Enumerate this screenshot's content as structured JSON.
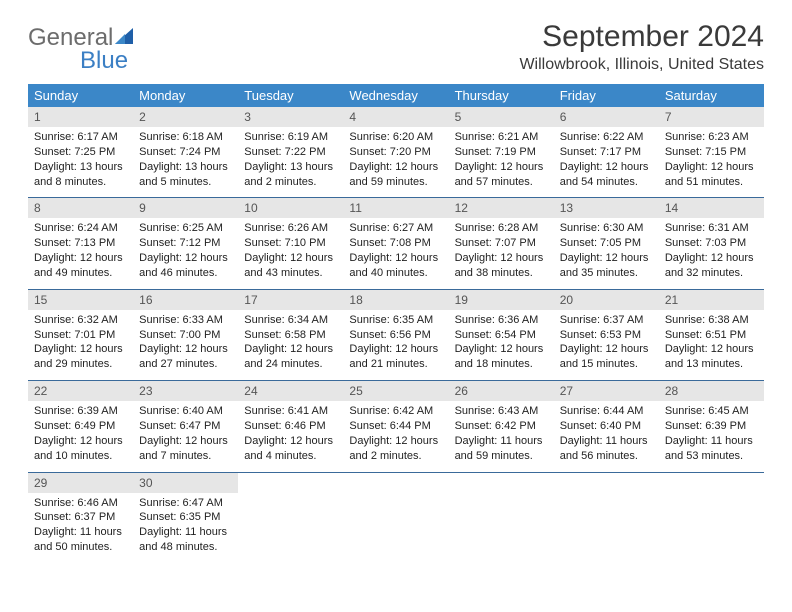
{
  "logo": {
    "general": "General",
    "blue": "Blue"
  },
  "title": "September 2024",
  "location": "Willowbrook, Illinois, United States",
  "colors": {
    "header_bg": "#3b87c8",
    "header_text": "#ffffff",
    "daynum_bg": "#e6e6e6",
    "daynum_text": "#555555",
    "rule": "#3a6a9a",
    "logo_gray": "#6c6c6c",
    "logo_blue": "#3b7fc4"
  },
  "weekdays": [
    "Sunday",
    "Monday",
    "Tuesday",
    "Wednesday",
    "Thursday",
    "Friday",
    "Saturday"
  ],
  "weeks": [
    [
      {
        "n": "1",
        "sr": "Sunrise: 6:17 AM",
        "ss": "Sunset: 7:25 PM",
        "dl": "Daylight: 13 hours and 8 minutes."
      },
      {
        "n": "2",
        "sr": "Sunrise: 6:18 AM",
        "ss": "Sunset: 7:24 PM",
        "dl": "Daylight: 13 hours and 5 minutes."
      },
      {
        "n": "3",
        "sr": "Sunrise: 6:19 AM",
        "ss": "Sunset: 7:22 PM",
        "dl": "Daylight: 13 hours and 2 minutes."
      },
      {
        "n": "4",
        "sr": "Sunrise: 6:20 AM",
        "ss": "Sunset: 7:20 PM",
        "dl": "Daylight: 12 hours and 59 minutes."
      },
      {
        "n": "5",
        "sr": "Sunrise: 6:21 AM",
        "ss": "Sunset: 7:19 PM",
        "dl": "Daylight: 12 hours and 57 minutes."
      },
      {
        "n": "6",
        "sr": "Sunrise: 6:22 AM",
        "ss": "Sunset: 7:17 PM",
        "dl": "Daylight: 12 hours and 54 minutes."
      },
      {
        "n": "7",
        "sr": "Sunrise: 6:23 AM",
        "ss": "Sunset: 7:15 PM",
        "dl": "Daylight: 12 hours and 51 minutes."
      }
    ],
    [
      {
        "n": "8",
        "sr": "Sunrise: 6:24 AM",
        "ss": "Sunset: 7:13 PM",
        "dl": "Daylight: 12 hours and 49 minutes."
      },
      {
        "n": "9",
        "sr": "Sunrise: 6:25 AM",
        "ss": "Sunset: 7:12 PM",
        "dl": "Daylight: 12 hours and 46 minutes."
      },
      {
        "n": "10",
        "sr": "Sunrise: 6:26 AM",
        "ss": "Sunset: 7:10 PM",
        "dl": "Daylight: 12 hours and 43 minutes."
      },
      {
        "n": "11",
        "sr": "Sunrise: 6:27 AM",
        "ss": "Sunset: 7:08 PM",
        "dl": "Daylight: 12 hours and 40 minutes."
      },
      {
        "n": "12",
        "sr": "Sunrise: 6:28 AM",
        "ss": "Sunset: 7:07 PM",
        "dl": "Daylight: 12 hours and 38 minutes."
      },
      {
        "n": "13",
        "sr": "Sunrise: 6:30 AM",
        "ss": "Sunset: 7:05 PM",
        "dl": "Daylight: 12 hours and 35 minutes."
      },
      {
        "n": "14",
        "sr": "Sunrise: 6:31 AM",
        "ss": "Sunset: 7:03 PM",
        "dl": "Daylight: 12 hours and 32 minutes."
      }
    ],
    [
      {
        "n": "15",
        "sr": "Sunrise: 6:32 AM",
        "ss": "Sunset: 7:01 PM",
        "dl": "Daylight: 12 hours and 29 minutes."
      },
      {
        "n": "16",
        "sr": "Sunrise: 6:33 AM",
        "ss": "Sunset: 7:00 PM",
        "dl": "Daylight: 12 hours and 27 minutes."
      },
      {
        "n": "17",
        "sr": "Sunrise: 6:34 AM",
        "ss": "Sunset: 6:58 PM",
        "dl": "Daylight: 12 hours and 24 minutes."
      },
      {
        "n": "18",
        "sr": "Sunrise: 6:35 AM",
        "ss": "Sunset: 6:56 PM",
        "dl": "Daylight: 12 hours and 21 minutes."
      },
      {
        "n": "19",
        "sr": "Sunrise: 6:36 AM",
        "ss": "Sunset: 6:54 PM",
        "dl": "Daylight: 12 hours and 18 minutes."
      },
      {
        "n": "20",
        "sr": "Sunrise: 6:37 AM",
        "ss": "Sunset: 6:53 PM",
        "dl": "Daylight: 12 hours and 15 minutes."
      },
      {
        "n": "21",
        "sr": "Sunrise: 6:38 AM",
        "ss": "Sunset: 6:51 PM",
        "dl": "Daylight: 12 hours and 13 minutes."
      }
    ],
    [
      {
        "n": "22",
        "sr": "Sunrise: 6:39 AM",
        "ss": "Sunset: 6:49 PM",
        "dl": "Daylight: 12 hours and 10 minutes."
      },
      {
        "n": "23",
        "sr": "Sunrise: 6:40 AM",
        "ss": "Sunset: 6:47 PM",
        "dl": "Daylight: 12 hours and 7 minutes."
      },
      {
        "n": "24",
        "sr": "Sunrise: 6:41 AM",
        "ss": "Sunset: 6:46 PM",
        "dl": "Daylight: 12 hours and 4 minutes."
      },
      {
        "n": "25",
        "sr": "Sunrise: 6:42 AM",
        "ss": "Sunset: 6:44 PM",
        "dl": "Daylight: 12 hours and 2 minutes."
      },
      {
        "n": "26",
        "sr": "Sunrise: 6:43 AM",
        "ss": "Sunset: 6:42 PM",
        "dl": "Daylight: 11 hours and 59 minutes."
      },
      {
        "n": "27",
        "sr": "Sunrise: 6:44 AM",
        "ss": "Sunset: 6:40 PM",
        "dl": "Daylight: 11 hours and 56 minutes."
      },
      {
        "n": "28",
        "sr": "Sunrise: 6:45 AM",
        "ss": "Sunset: 6:39 PM",
        "dl": "Daylight: 11 hours and 53 minutes."
      }
    ],
    [
      {
        "n": "29",
        "sr": "Sunrise: 6:46 AM",
        "ss": "Sunset: 6:37 PM",
        "dl": "Daylight: 11 hours and 50 minutes."
      },
      {
        "n": "30",
        "sr": "Sunrise: 6:47 AM",
        "ss": "Sunset: 6:35 PM",
        "dl": "Daylight: 11 hours and 48 minutes."
      },
      null,
      null,
      null,
      null,
      null
    ]
  ]
}
